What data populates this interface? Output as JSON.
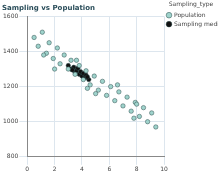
{
  "chart_data": {
    "type": "scatter",
    "title": "Sampling vs Population",
    "legend_title": "Sampling_type",
    "legend": "right",
    "grid": true,
    "xlim": [
      0,
      10
    ],
    "xticks": [
      0,
      2,
      4,
      6,
      8,
      10
    ],
    "ylim": [
      800,
      1600
    ],
    "yticks": [
      800,
      1000,
      1200,
      1400,
      1600
    ],
    "series": [
      {
        "name": "Population",
        "color": "#9fd3cc",
        "marker": "circle",
        "x": [
          0.5,
          0.8,
          1.1,
          1.4,
          1.6,
          1.9,
          2.2,
          2.4,
          2.7,
          3.0,
          3.2,
          3.5,
          3.8,
          4.1,
          4.3,
          4.6,
          4.9,
          5.2,
          5.5,
          5.8,
          6.1,
          6.4,
          6.7,
          7.0,
          7.3,
          7.6,
          7.9,
          8.2,
          8.5,
          8.8,
          9.1,
          9.4,
          2.0,
          3.6,
          5.0,
          6.6,
          7.8,
          1.2,
          4.4,
          8.0
        ],
        "values": [
          1480,
          1430,
          1510,
          1390,
          1450,
          1360,
          1420,
          1330,
          1380,
          1300,
          1350,
          1270,
          1320,
          1240,
          1290,
          1210,
          1260,
          1180,
          1230,
          1150,
          1200,
          1120,
          1170,
          1090,
          1140,
          1060,
          1110,
          1030,
          1080,
          1000,
          1050,
          970,
          1300,
          1350,
          1160,
          1210,
          1020,
          1380,
          1190,
          1100
        ]
      },
      {
        "name": "Sampling median",
        "color": "#111111",
        "marker": "circle",
        "x": [
          3.0,
          3.2,
          3.4,
          3.5,
          3.6,
          3.8,
          3.9,
          4.0,
          4.1,
          4.2,
          4.3,
          4.5,
          3.3,
          3.7,
          4.4
        ],
        "values": [
          1320,
          1300,
          1310,
          1280,
          1290,
          1270,
          1285,
          1260,
          1275,
          1250,
          1265,
          1240,
          1295,
          1305,
          1255
        ]
      }
    ]
  }
}
